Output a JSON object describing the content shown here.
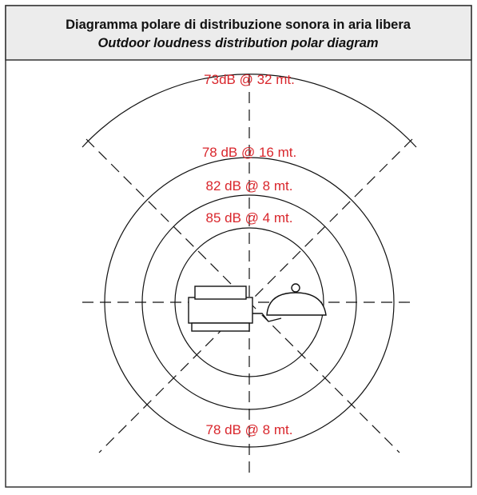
{
  "header": {
    "title": "Diagramma polare di distribuzione sonora in aria libera",
    "subtitle": "Outdoor loudness distribution polar diagram"
  },
  "labels": [
    "73dB @ 32 mt.",
    "78 dB @ 16 mt.",
    "82 dB @ 8 mt.",
    "85 dB @ 4 mt.",
    "78 dB @ 8 mt."
  ]
}
